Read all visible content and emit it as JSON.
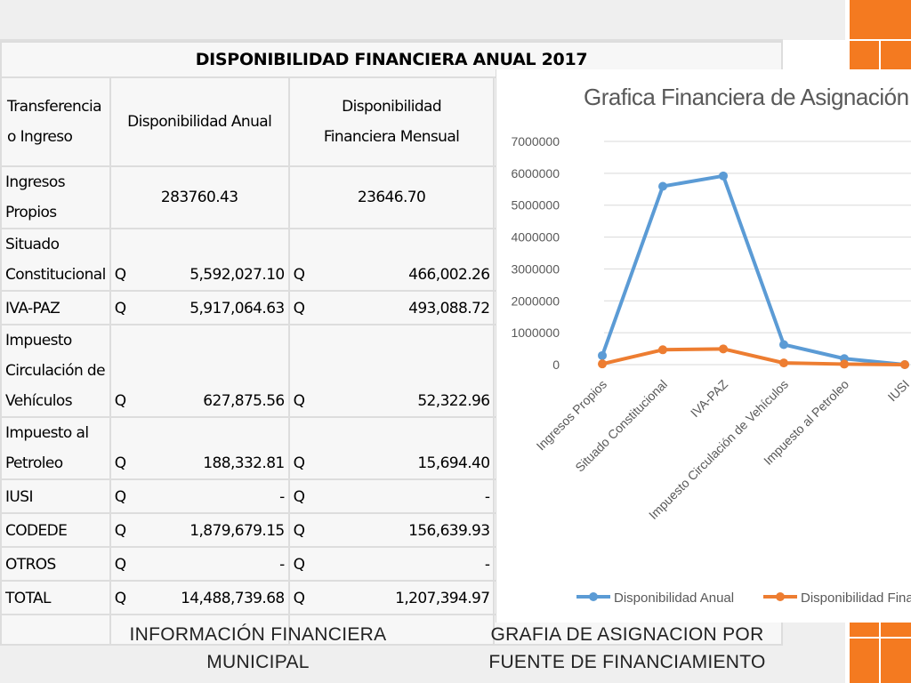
{
  "table": {
    "title": "DISPONIBILIDAD FINANCIERA ANUAL  2017",
    "headers": [
      "Transferencia o Ingreso",
      "Disponibilidad Anual",
      "Disponibilidad Financiera Mensual"
    ],
    "rows": [
      {
        "name_lines": [
          "Ingresos",
          "Propios"
        ],
        "q1": "",
        "annual": "283760.43",
        "q2": "",
        "monthly": "23646.70",
        "plain": true
      },
      {
        "name_lines": [
          "Situado",
          "Constitucional"
        ],
        "q1": "Q",
        "annual": "5,592,027.10",
        "q2": "Q",
        "monthly": "466,002.26"
      },
      {
        "name_lines": [
          "IVA-PAZ"
        ],
        "q1": "Q",
        "annual": "5,917,064.63",
        "q2": "Q",
        "monthly": "493,088.72"
      },
      {
        "name_lines": [
          "Impuesto",
          "Circulación de",
          "Vehículos"
        ],
        "q1": "Q",
        "annual": "627,875.56",
        "q2": "Q",
        "monthly": "52,322.96"
      },
      {
        "name_lines": [
          "Impuesto al",
          "Petroleo"
        ],
        "q1": "Q",
        "annual": "188,332.81",
        "q2": "Q",
        "monthly": "15,694.40"
      },
      {
        "name_lines": [
          "IUSI"
        ],
        "q1": "Q",
        "annual": "-",
        "q2": "Q",
        "monthly": "-"
      },
      {
        "name_lines": [
          "CODEDE"
        ],
        "q1": "Q",
        "annual": "1,879,679.15",
        "q2": "Q",
        "monthly": "156,639.93"
      },
      {
        "name_lines": [
          "OTROS"
        ],
        "q1": "Q",
        "annual": "-",
        "q2": "Q",
        "monthly": "-"
      }
    ],
    "total": {
      "label": "TOTAL",
      "q1": "Q",
      "annual": "14,488,739.68",
      "q2": "Q",
      "monthly": "1,207,394.97"
    }
  },
  "captions": {
    "left": [
      "INFORMACIÓN FINANCIERA",
      "MUNICIPAL"
    ],
    "right": [
      "GRAFIA DE ASIGNACION POR",
      "FUENTE DE FINANCIAMIENTO"
    ]
  },
  "colors": {
    "orange": "#f47a20",
    "series_blue": "#5b9bd5",
    "series_orange": "#ed7d31",
    "axis_text": "#595959",
    "grid": "#d9d9d9"
  },
  "chart_data": {
    "type": "line",
    "title": "Grafica Financiera de Asignación y E",
    "categories": [
      "Ingresos Propios",
      "Situado Constitucional",
      "IVA-PAZ",
      "Impuesto Circulación de Vehículos",
      "Impuesto al Petroleo",
      "IUSI"
    ],
    "series": [
      {
        "name": "Disponibilidad Anual",
        "color": "#5b9bd5",
        "values": [
          283760.43,
          5592027.1,
          5917064.63,
          627875.56,
          188332.81,
          0
        ]
      },
      {
        "name": "Disponibilidad Fina",
        "color": "#ed7d31",
        "values": [
          23646.7,
          466002.26,
          493088.72,
          52322.96,
          15694.4,
          0
        ]
      }
    ],
    "y_ticks": [
      "0",
      "1000000",
      "2000000",
      "3000000",
      "4000000",
      "5000000",
      "6000000",
      "7000000"
    ],
    "ylim": [
      0,
      7000000
    ],
    "grid": true,
    "legend_position": "bottom"
  }
}
